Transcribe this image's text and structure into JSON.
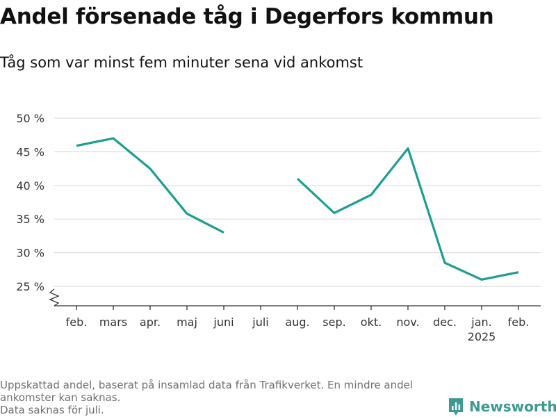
{
  "title": "Andel försenade tåg i Degerfors kommun",
  "subtitle": "Tåg som var minst fem minuter sena vid ankomst",
  "footnote": {
    "line1": "Uppskattad andel, baserat på insamlad data från Trafikverket. En mindre andel",
    "line2": "ankomster kan saknas.",
    "line3": "Data saknas för juli."
  },
  "brand": {
    "name": "Newsworthy",
    "color": "#3d9a91"
  },
  "chart_data": {
    "type": "line",
    "title": "Andel försenade tåg i Degerfors kommun",
    "subtitle": "Tåg som var minst fem minuter sena vid ankomst",
    "categories": [
      "feb.",
      "mars",
      "apr.",
      "maj",
      "juni",
      "juli",
      "aug.",
      "sep.",
      "okt.",
      "nov.",
      "dec.",
      "jan.",
      "feb."
    ],
    "year_label": {
      "category_index": 11,
      "text": "2025"
    },
    "series": [
      {
        "values": [
          45.9,
          47.0,
          42.5,
          35.8,
          33.0,
          null,
          41.0,
          35.9,
          38.6,
          45.5,
          28.5,
          26.0,
          27.1
        ]
      }
    ],
    "yticks": [
      25,
      30,
      35,
      40,
      45,
      50
    ],
    "ytick_suffix": " %",
    "ylim": [
      22,
      51
    ],
    "axis_break": true,
    "grid": true,
    "line_color": "#1a9e91"
  }
}
